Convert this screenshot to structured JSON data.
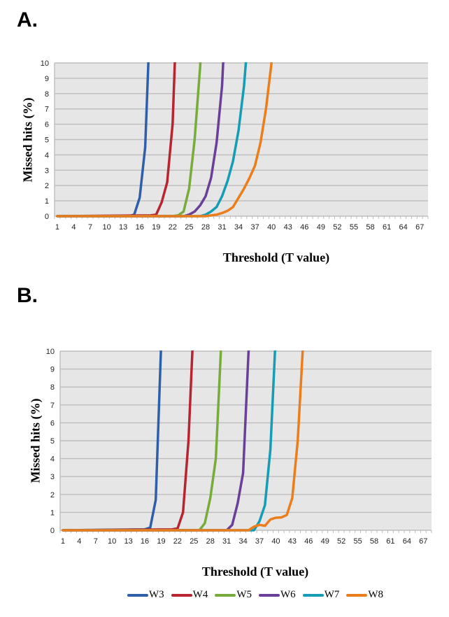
{
  "panels": [
    {
      "label": "A.",
      "chart_data": {
        "type": "line",
        "title": "",
        "xlabel": "Threshold (T value)",
        "ylabel": "Missed hits (%)",
        "x_range": [
          1,
          68
        ],
        "x_tick_labels": [
          1,
          4,
          7,
          10,
          13,
          16,
          19,
          22,
          25,
          28,
          31,
          34,
          37,
          40,
          43,
          46,
          49,
          52,
          55,
          58,
          61,
          64,
          67
        ],
        "ylim": [
          0,
          10
        ],
        "y_ticks": [
          0,
          1,
          2,
          3,
          4,
          5,
          6,
          7,
          8,
          9,
          10
        ],
        "grid": "horizontal",
        "series": [
          {
            "name": "W3",
            "color": "#2e5fa8",
            "points": [
              [
                1,
                0
              ],
              [
                14,
                0
              ],
              [
                15,
                0.1
              ],
              [
                16,
                1.2
              ],
              [
                17,
                4.5
              ],
              [
                18,
                14
              ]
            ]
          },
          {
            "name": "W4",
            "color": "#b8252f",
            "points": [
              [
                1,
                0
              ],
              [
                18,
                0.05
              ],
              [
                19,
                0.1
              ],
              [
                20,
                0.9
              ],
              [
                21,
                2.2
              ],
              [
                22,
                6
              ],
              [
                23,
                16
              ]
            ]
          },
          {
            "name": "W5",
            "color": "#77ac3a",
            "points": [
              [
                1,
                0
              ],
              [
                22,
                0
              ],
              [
                23,
                0.05
              ],
              [
                24,
                0.3
              ],
              [
                25,
                1.8
              ],
              [
                26,
                5
              ],
              [
                27,
                9.7
              ],
              [
                28,
                16
              ]
            ]
          },
          {
            "name": "W6",
            "color": "#6b3e98",
            "points": [
              [
                1,
                0
              ],
              [
                24,
                0
              ],
              [
                25,
                0.1
              ],
              [
                26,
                0.3
              ],
              [
                27,
                0.7
              ],
              [
                28,
                1.3
              ],
              [
                29,
                2.5
              ],
              [
                30,
                4.8
              ],
              [
                31,
                8.5
              ],
              [
                32,
                16
              ]
            ]
          },
          {
            "name": "W7",
            "color": "#149db5",
            "points": [
              [
                1,
                0
              ],
              [
                27,
                0
              ],
              [
                28,
                0.1
              ],
              [
                29,
                0.3
              ],
              [
                30,
                0.6
              ],
              [
                31,
                1.3
              ],
              [
                32,
                2.3
              ],
              [
                33,
                3.6
              ],
              [
                34,
                5.6
              ],
              [
                35,
                8.5
              ],
              [
                36,
                13
              ]
            ]
          },
          {
            "name": "W8",
            "color": "#ec7d1b",
            "points": [
              [
                1,
                0
              ],
              [
                28,
                0
              ],
              [
                29,
                0.05
              ],
              [
                30,
                0.1
              ],
              [
                31,
                0.2
              ],
              [
                32,
                0.35
              ],
              [
                33,
                0.6
              ],
              [
                34,
                1.2
              ],
              [
                35,
                1.8
              ],
              [
                36,
                2.5
              ],
              [
                37,
                3.3
              ],
              [
                38,
                4.8
              ],
              [
                39,
                7
              ],
              [
                40,
                10
              ]
            ]
          }
        ]
      }
    },
    {
      "label": "B.",
      "chart_data": {
        "type": "line",
        "title": "",
        "xlabel": "Threshold (T value)",
        "ylabel": "Missed hits (%)",
        "x_range": [
          1,
          68
        ],
        "x_tick_labels": [
          1,
          4,
          7,
          10,
          13,
          16,
          19,
          22,
          25,
          28,
          31,
          34,
          37,
          40,
          43,
          46,
          49,
          52,
          55,
          58,
          61,
          64,
          67
        ],
        "ylim": [
          0,
          10
        ],
        "y_ticks": [
          0,
          1,
          2,
          3,
          4,
          5,
          6,
          7,
          8,
          9,
          10
        ],
        "grid": "horizontal",
        "series": [
          {
            "name": "W3",
            "color": "#2e5fa8",
            "points": [
              [
                1,
                0
              ],
              [
                16,
                0.05
              ],
              [
                17,
                0.15
              ],
              [
                18,
                1.7
              ],
              [
                19,
                10.5
              ]
            ]
          },
          {
            "name": "W4",
            "color": "#b8252f",
            "points": [
              [
                1,
                0
              ],
              [
                21,
                0.05
              ],
              [
                22,
                0.1
              ],
              [
                23,
                1
              ],
              [
                24,
                5
              ],
              [
                25,
                12
              ]
            ]
          },
          {
            "name": "W5",
            "color": "#77ac3a",
            "points": [
              [
                1,
                0
              ],
              [
                26,
                0
              ],
              [
                27,
                0.4
              ],
              [
                28,
                1.8
              ],
              [
                29,
                4
              ],
              [
                30,
                10.5
              ]
            ]
          },
          {
            "name": "W6",
            "color": "#6b3e98",
            "points": [
              [
                1,
                0
              ],
              [
                31,
                0
              ],
              [
                32,
                0.3
              ],
              [
                33,
                1.5
              ],
              [
                34,
                3.2
              ],
              [
                35,
                10
              ]
            ]
          },
          {
            "name": "W7",
            "color": "#149db5",
            "points": [
              [
                1,
                0
              ],
              [
                36,
                0
              ],
              [
                37,
                0.5
              ],
              [
                38,
                1.4
              ],
              [
                39,
                4.5
              ],
              [
                40,
                11
              ]
            ]
          },
          {
            "name": "W8",
            "color": "#ec7d1b",
            "points": [
              [
                1,
                0
              ],
              [
                35,
                0
              ],
              [
                36,
                0.2
              ],
              [
                37,
                0.3
              ],
              [
                38,
                0.25
              ],
              [
                39,
                0.6
              ],
              [
                40,
                0.7
              ],
              [
                41,
                0.72
              ],
              [
                42,
                0.85
              ],
              [
                43,
                1.8
              ],
              [
                44,
                5
              ],
              [
                45,
                10.5
              ]
            ]
          }
        ]
      }
    }
  ],
  "legend": [
    {
      "name": "W3",
      "color": "#2e5fa8"
    },
    {
      "name": "W4",
      "color": "#b8252f"
    },
    {
      "name": "W5",
      "color": "#77ac3a"
    },
    {
      "name": "W6",
      "color": "#6b3e98"
    },
    {
      "name": "W7",
      "color": "#149db5"
    },
    {
      "name": "W8",
      "color": "#ec7d1b"
    }
  ]
}
